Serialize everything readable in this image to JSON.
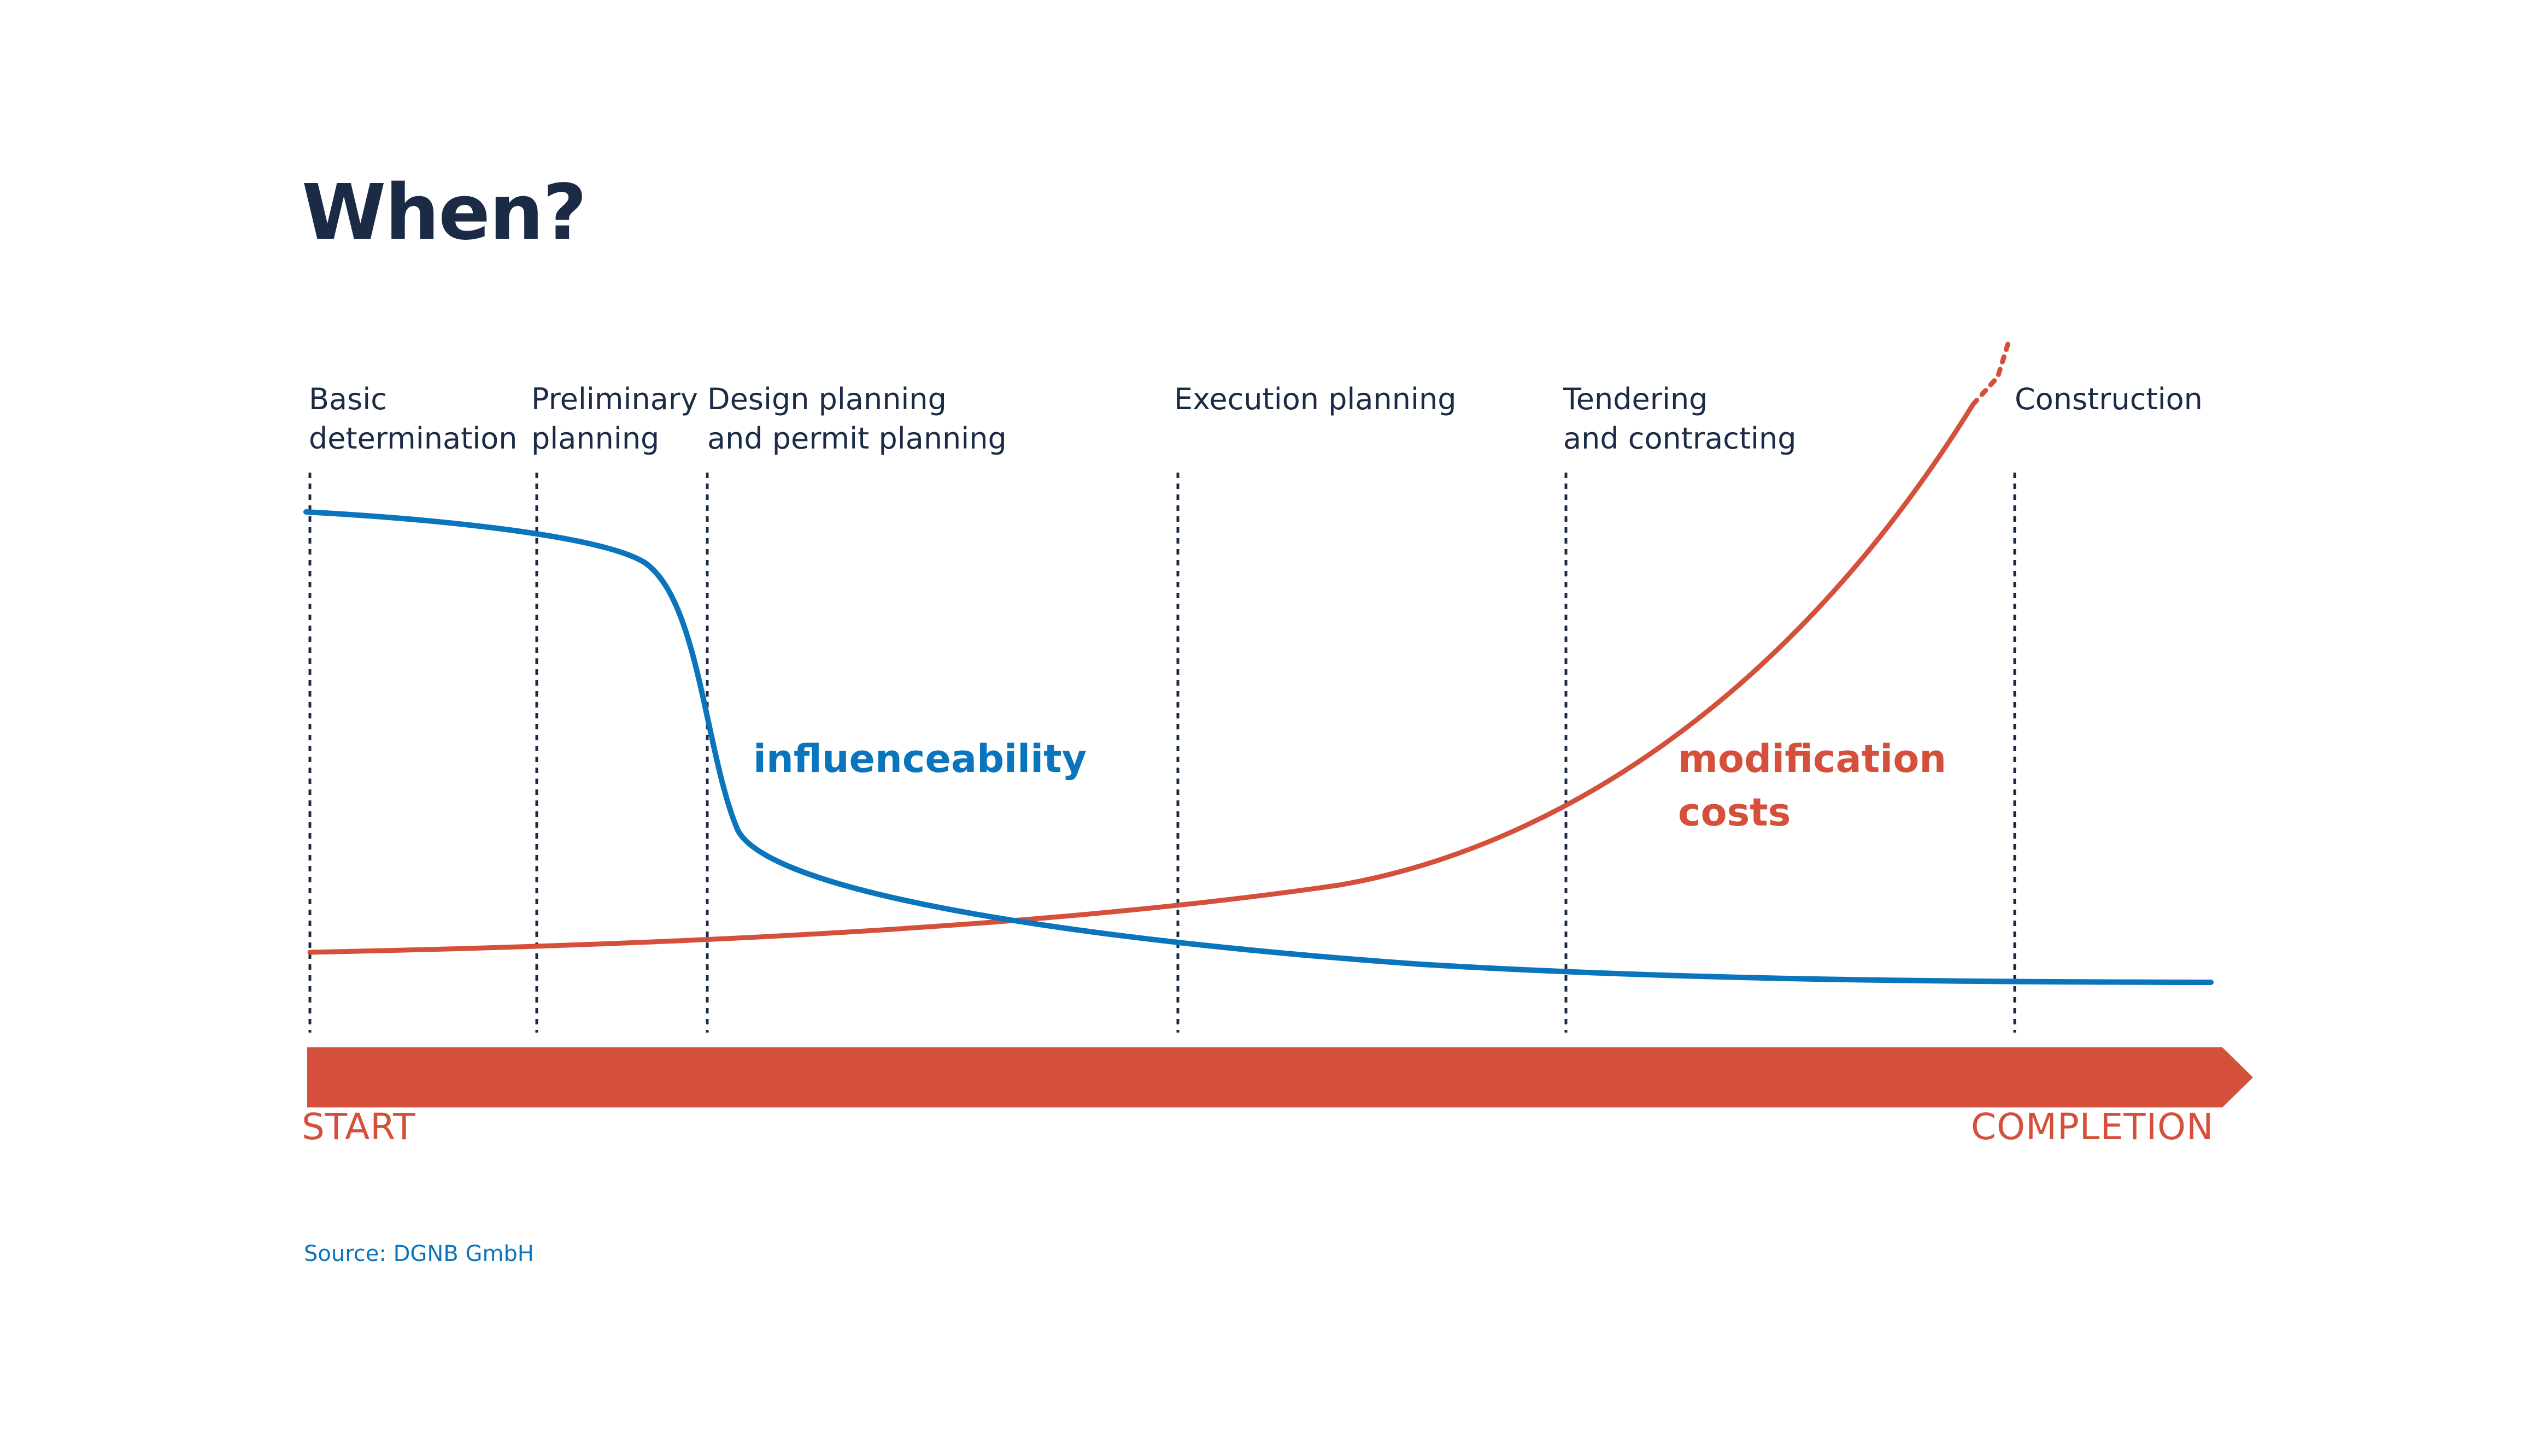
{
  "title": "When?",
  "colors": {
    "influenceability": "#0a74bd",
    "modification_costs": "#d5503a",
    "text": "#1c2b45",
    "source": "#0a74bd"
  },
  "timeline": {
    "start_label": "START",
    "end_label": "COMPLETION"
  },
  "phases": [
    {
      "lines": [
        "Basic",
        "determination"
      ]
    },
    {
      "lines": [
        "Preliminary",
        "planning"
      ]
    },
    {
      "lines": [
        "Design planning",
        "and permit planning"
      ]
    },
    {
      "lines": [
        "Execution planning"
      ]
    },
    {
      "lines": [
        "Tendering",
        "and contracting"
      ]
    },
    {
      "lines": [
        "Construction"
      ]
    }
  ],
  "curves": {
    "influenceability": {
      "label": "influenceability"
    },
    "modification_costs": {
      "label": "modification costs"
    }
  },
  "source": "Source: DGNB GmbH"
}
